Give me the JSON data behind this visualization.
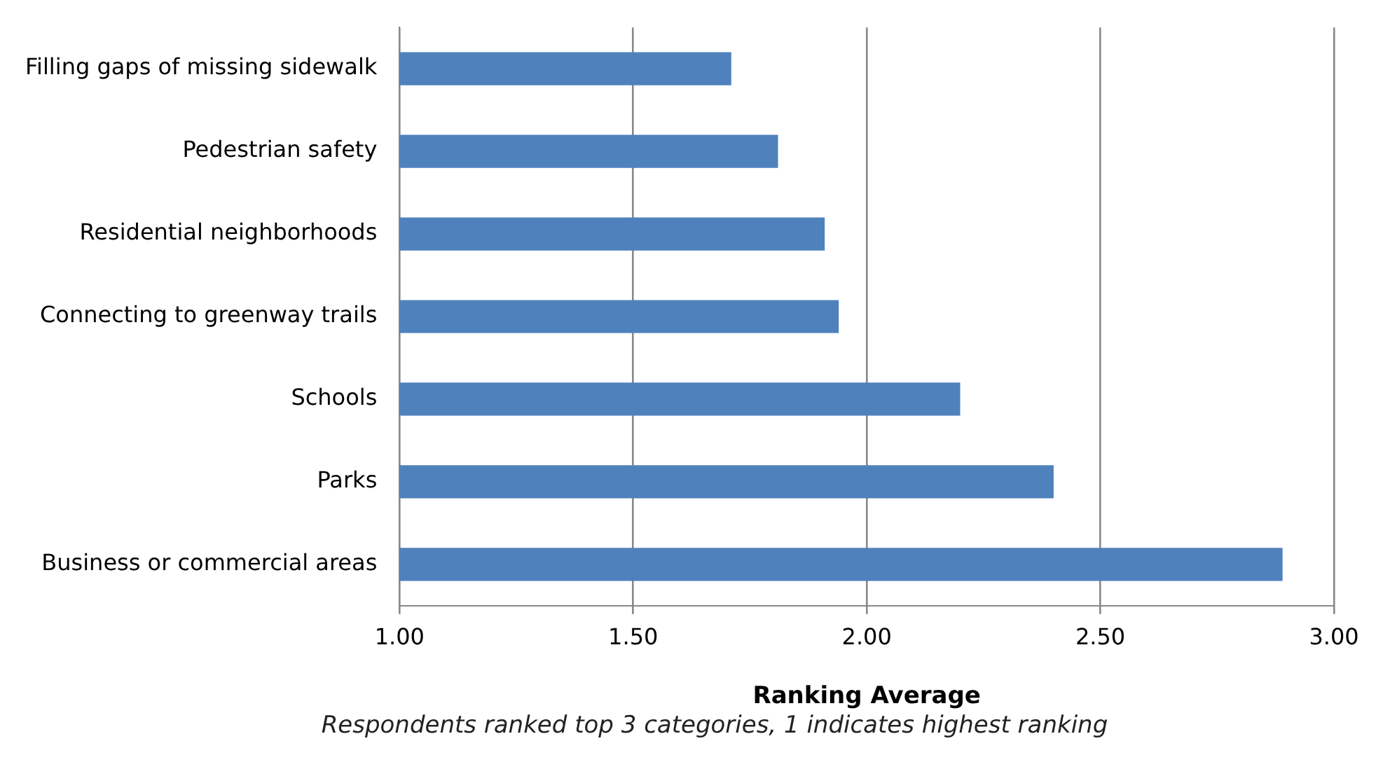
{
  "chart_data": {
    "type": "bar",
    "orientation": "horizontal",
    "categories": [
      "Filling gaps of missing sidewalk",
      "Pedestrian safety",
      "Residential neighborhoods",
      "Connecting to greenway trails",
      "Schools",
      "Parks",
      "Business or commercial areas"
    ],
    "values": [
      1.71,
      1.81,
      1.91,
      1.94,
      2.2,
      2.4,
      2.89
    ],
    "color": "#4f81bd",
    "xlim": [
      1,
      3
    ],
    "xticks": [
      {
        "value": 1,
        "label": "1.00"
      },
      {
        "value": 1.5,
        "label": "1.50"
      },
      {
        "value": 2,
        "label": "2.00"
      },
      {
        "value": 2.5,
        "label": "2.50"
      },
      {
        "value": 3,
        "label": "3.00"
      }
    ],
    "xlabel": "Ranking Average",
    "annotations": [
      "Respondents ranked top 3 categories, 1 indicates highest ranking"
    ],
    "grid": "x",
    "legend": false
  }
}
